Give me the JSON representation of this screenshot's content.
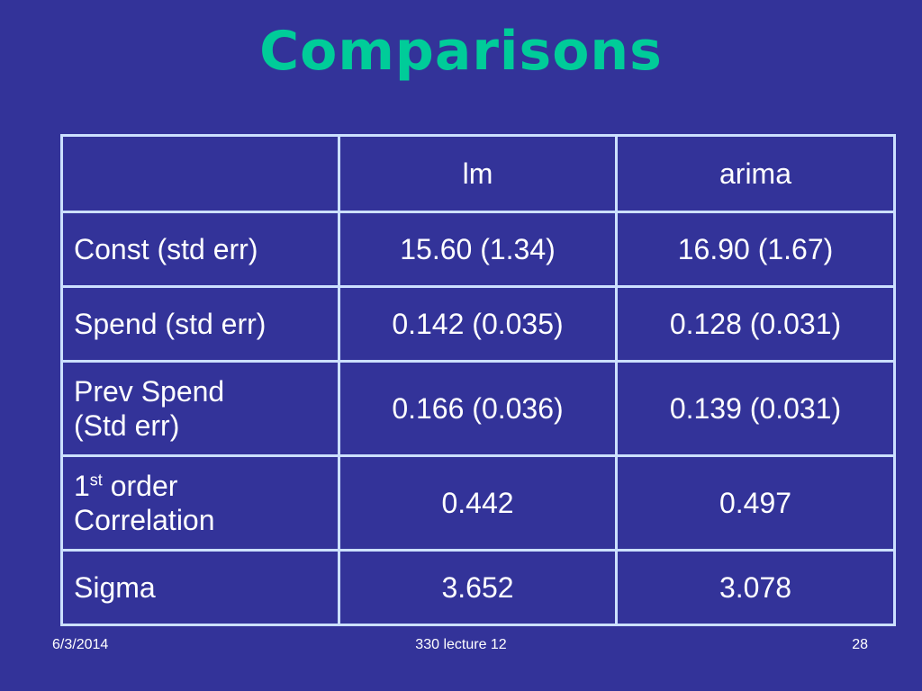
{
  "title": "Comparisons",
  "table": {
    "header": [
      "",
      "lm",
      "arima"
    ],
    "rows": [
      {
        "label": "Const (std err)",
        "lm": "15.60 (1.34)",
        "arima": "16.90 (1.67)"
      },
      {
        "label": "Spend (std err)",
        "lm": "0.142 (0.035)",
        "arima": "0.128 (0.031)"
      },
      {
        "label_line1": "Prev Spend",
        "label_line2": "(Std err)",
        "lm": "0.166 (0.036)",
        "arima": "0.139 (0.031)"
      },
      {
        "label_prefix": "1",
        "label_sup": "st",
        "label_line1": " order",
        "label_line2": "Correlation",
        "lm": "0.442",
        "arima": "0.497"
      },
      {
        "label": "Sigma",
        "lm": "3.652",
        "arima": "3.078"
      }
    ]
  },
  "footer": {
    "date": "6/3/2014",
    "center": "330 lecture 12",
    "page": "28"
  },
  "colors": {
    "background": "#333399",
    "title": "#00cc99",
    "border": "#cce0ff",
    "text": "#ffffff"
  }
}
